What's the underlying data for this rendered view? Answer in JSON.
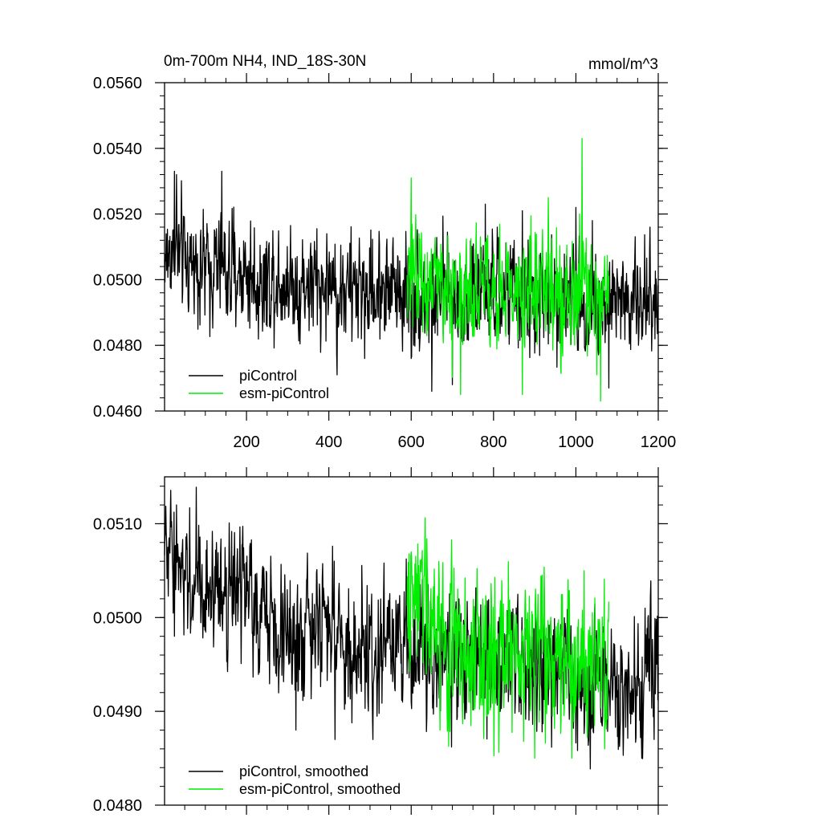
{
  "chart_data": [
    {
      "type": "line",
      "title": "0m-700m NH4, IND_18S-30N",
      "units": "mmol/m^3",
      "xlim": [
        1,
        1200
      ],
      "ylim": [
        0.046,
        0.056
      ],
      "xticks": [
        200,
        400,
        600,
        800,
        1000,
        1200
      ],
      "xtick_labels": [
        "200",
        "400",
        "600",
        "800",
        "1000",
        "1200"
      ],
      "yticks": [
        0.046,
        0.048,
        0.05,
        0.052,
        0.054,
        0.056
      ],
      "ytick_labels": [
        "0.0460",
        "0.0480",
        "0.0500",
        "0.0520",
        "0.0540",
        "0.0560"
      ],
      "legend_position": "bottom-left",
      "series": [
        {
          "name": "piControl",
          "color": "#000000",
          "x_range": [
            1,
            1200
          ],
          "x_step": 25,
          "values": [
            0.0506,
            0.0509,
            0.0505,
            0.0506,
            0.0503,
            0.0504,
            0.0502,
            0.0502,
            0.0502,
            0.0499,
            0.05,
            0.0501,
            0.05,
            0.0498,
            0.0499,
            0.0498,
            0.0499,
            0.0497,
            0.0497,
            0.0497,
            0.0496,
            0.0498,
            0.0498,
            0.0497,
            0.0497,
            0.0496,
            0.0495,
            0.0496,
            0.0496,
            0.0495,
            0.0496,
            0.0495,
            0.0495,
            0.0496,
            0.0495,
            0.0495,
            0.0494,
            0.0494,
            0.0495,
            0.0494,
            0.0494,
            0.0493,
            0.0493,
            0.0493,
            0.0494,
            0.0493,
            0.0493,
            0.0494
          ],
          "peak_points": [
            [
              25,
              0.0533
            ],
            [
              30,
              0.0532
            ],
            [
              140,
              0.0533
            ],
            [
              420,
              0.0471
            ],
            [
              600,
              0.0476
            ],
            [
              650,
              0.0466
            ],
            [
              700,
              0.0468
            ],
            [
              780,
              0.0523
            ],
            [
              870,
              0.0521
            ],
            [
              1000,
              0.0522
            ],
            [
              1040,
              0.0518
            ],
            [
              1080,
              0.0467
            ],
            [
              1180,
              0.0516
            ]
          ]
        },
        {
          "name": "esm-piControl",
          "color": "#00ee00",
          "x_range": [
            590,
            1080
          ],
          "x_step": 25,
          "values": [
            0.05,
            0.0503,
            0.0499,
            0.0498,
            0.0497,
            0.0498,
            0.0496,
            0.0497,
            0.0496,
            0.0494,
            0.0497,
            0.0496,
            0.0498,
            0.0497,
            0.0496,
            0.0496,
            0.0494,
            0.0497,
            0.0495,
            0.0494
          ],
          "peak_points": [
            [
              600,
              0.0531
            ],
            [
              720,
              0.0465
            ],
            [
              870,
              0.0465
            ],
            [
              1015,
              0.0543
            ],
            [
              1060,
              0.0463
            ]
          ]
        }
      ]
    },
    {
      "type": "line",
      "title": "",
      "xlim": [
        1,
        1200
      ],
      "ylim": [
        0.048,
        0.0515
      ],
      "xticks": [
        200,
        400,
        600,
        800,
        1000,
        1200
      ],
      "yticks": [
        0.048,
        0.049,
        0.05,
        0.051
      ],
      "ytick_labels": [
        "0.0480",
        "0.0490",
        "0.0500",
        "0.0510"
      ],
      "legend_position": "bottom-left",
      "series": [
        {
          "name": "piControl, smoothed",
          "color": "#000000",
          "x_range": [
            1,
            1200
          ],
          "x_step": 25,
          "values": [
            0.0506,
            0.0507,
            0.0505,
            0.0504,
            0.0503,
            0.0504,
            0.0503,
            0.0502,
            0.0502,
            0.05,
            0.05,
            0.05,
            0.0499,
            0.0498,
            0.0499,
            0.0498,
            0.0499,
            0.0497,
            0.0497,
            0.0497,
            0.0496,
            0.0498,
            0.0498,
            0.0497,
            0.0497,
            0.0496,
            0.0495,
            0.0496,
            0.0496,
            0.0495,
            0.0496,
            0.0495,
            0.0495,
            0.0496,
            0.0495,
            0.0495,
            0.0494,
            0.0494,
            0.0495,
            0.0494,
            0.0494,
            0.0493,
            0.0493,
            0.0493,
            0.0494,
            0.0493,
            0.0492,
            0.0495
          ],
          "peak_points": [
            [
              30,
              0.0512
            ],
            [
              25,
              0.0498
            ],
            [
              320,
              0.0488
            ],
            [
              415,
              0.0487
            ],
            [
              1160,
              0.0485
            ],
            [
              1190,
              0.0487
            ]
          ]
        },
        {
          "name": "esm-piControl, smoothed",
          "color": "#00ee00",
          "x_range": [
            590,
            1080
          ],
          "x_step": 25,
          "values": [
            0.05,
            0.0503,
            0.0499,
            0.0498,
            0.0497,
            0.0498,
            0.0496,
            0.0497,
            0.0496,
            0.0494,
            0.0497,
            0.0496,
            0.0498,
            0.0497,
            0.0496,
            0.0496,
            0.0494,
            0.0497,
            0.0495,
            0.0494
          ],
          "peak_points": [
            [
              600,
              0.0507
            ],
            [
              670,
              0.0488
            ],
            [
              900,
              0.0485
            ],
            [
              990,
              0.0485
            ],
            [
              1020,
              0.0505
            ],
            [
              1070,
              0.0486
            ]
          ]
        }
      ]
    }
  ]
}
